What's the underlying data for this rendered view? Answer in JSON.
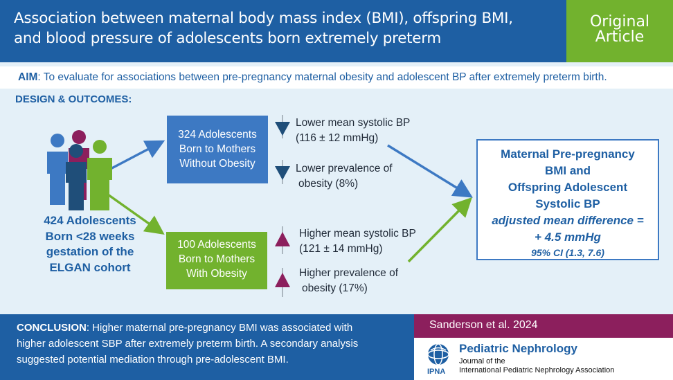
{
  "header": {
    "title_line1": "Association between maternal body mass index (BMI), offspring BMI,",
    "title_line2": "and blood pressure of adolescents born extremely preterm",
    "badge_line1": "Original",
    "badge_line2": "Article"
  },
  "aim": {
    "label": "AIM",
    "text": ": To evaluate for associations between pre-pregnancy maternal obesity and adolescent BP after extremely preterm birth."
  },
  "design": {
    "label": "DESIGN & OUTCOMES",
    "suffix": ":"
  },
  "cohort": {
    "line1": "424 Adolescents",
    "line2": "Born <28 weeks",
    "line3": "gestation of the",
    "line4": "ELGAN cohort"
  },
  "group_without": {
    "line1": "324 Adolescents",
    "line2": "Born to Mothers",
    "line3": "Without Obesity",
    "outcome1_line1": "Lower mean systolic BP",
    "outcome1_line2": "(116 ± 12 mmHg)",
    "outcome2_line1": "Lower prevalence of",
    "outcome2_line2": "obesity (8%)"
  },
  "group_with": {
    "line1": "100 Adolescents",
    "line2": "Born to Mothers",
    "line3": "With Obesity",
    "outcome1_line1": "Higher mean systolic BP",
    "outcome1_line2": "(121 ± 14 mmHg)",
    "outcome2_line1": "Higher prevalence of",
    "outcome2_line2": "obesity (17%)"
  },
  "result": {
    "line1": "Maternal Pre-pregnancy",
    "line2": "BMI and",
    "line3": "Offspring Adolescent",
    "line4": "Systolic BP",
    "line5": "adjusted mean difference =",
    "line6": "+ 4.5 mmHg",
    "line7": "95% CI (1.3, 7.6)"
  },
  "conclusion": {
    "label": "CONCLUSION",
    "line1": ": Higher maternal pre-pregnancy BMI was associated with",
    "line2": "higher adolescent SBP after extremely preterm birth. A secondary analysis",
    "line3": "suggested potential mediation through pre-adolescent BMI."
  },
  "citation": "Sanderson et al. 2024",
  "journal": {
    "name": "Pediatric Nephrology",
    "sub1": "Journal of the",
    "sub2": "International Pediatric Nephrology Association",
    "logo_text": "IPNA"
  },
  "colors": {
    "blue": "#1e5fa3",
    "green": "#72b22e",
    "magenta": "#8c1f5d",
    "navy_arrow": "#1f4e79",
    "light_bg": "#e4f0f8"
  },
  "icons": {
    "people": "people-group-icon",
    "down": "down-triangle-icon",
    "up": "up-triangle-icon"
  }
}
